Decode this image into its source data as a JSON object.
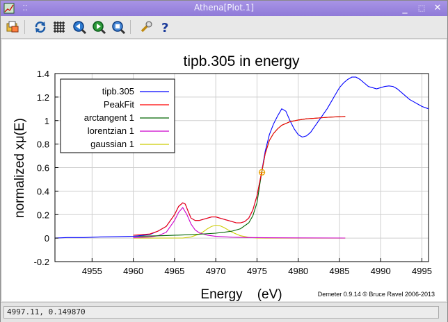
{
  "window": {
    "title": "Athena[Plot.1]"
  },
  "toolbar": {
    "icons": [
      "open-icon",
      "refresh-icon",
      "grid-icon",
      "zoom-back-icon",
      "zoom-forward-icon",
      "zoom-reset-icon",
      "settings-wrench-icon",
      "help-icon"
    ]
  },
  "status": {
    "text": "4997.11, 0.149870"
  },
  "credit": "Demeter 0.9.14 © Bruce Ravel 2006-2013",
  "chart_data": {
    "type": "line",
    "title": "tipb.305 in energy",
    "xlabel": "Energy    (eV)",
    "ylabel": "normalized xμ(E)",
    "xlim": [
      4950.5,
      4995.8
    ],
    "ylim": [
      -0.2,
      1.4
    ],
    "xticks": [
      4955,
      4960,
      4965,
      4970,
      4975,
      4980,
      4985,
      4990,
      4995
    ],
    "yticks": [
      -0.2,
      0,
      0.2,
      0.4,
      0.6,
      0.8,
      1,
      1.2,
      1.4
    ],
    "grid": true,
    "legend_position": "top-left",
    "marker": {
      "x": 4975.6,
      "y": 0.56,
      "color": "#e8a000"
    },
    "series": [
      {
        "name": "tipb.305",
        "color": "#0000ff",
        "x": [
          4950.5,
          4952,
          4954,
          4956,
          4958,
          4960,
          4962,
          4963,
          4964,
          4965,
          4965.5,
          4966,
          4966.3,
          4966.7,
          4967,
          4967.5,
          4968,
          4968.5,
          4969,
          4969.5,
          4970,
          4970.5,
          4971,
          4971.5,
          4972,
          4972.5,
          4973,
          4973.5,
          4974,
          4974.5,
          4975,
          4975.5,
          4976,
          4976.5,
          4977,
          4977.5,
          4978,
          4978.5,
          4979,
          4979.5,
          4980,
          4980.5,
          4981,
          4981.5,
          4982,
          4982.5,
          4983,
          4983.5,
          4984,
          4984.5,
          4985,
          4985.5,
          4986,
          4986.5,
          4987,
          4987.5,
          4988,
          4988.5,
          4989,
          4989.5,
          4990,
          4990.5,
          4991,
          4991.5,
          4992,
          4992.5,
          4993,
          4993.5,
          4994,
          4994.5,
          4995,
          4995.8
        ],
        "y": [
          0.0,
          0.005,
          0.005,
          0.01,
          0.012,
          0.015,
          0.03,
          0.06,
          0.1,
          0.2,
          0.27,
          0.3,
          0.29,
          0.22,
          0.17,
          0.15,
          0.15,
          0.16,
          0.17,
          0.18,
          0.18,
          0.17,
          0.16,
          0.15,
          0.14,
          0.13,
          0.13,
          0.14,
          0.17,
          0.24,
          0.36,
          0.54,
          0.74,
          0.88,
          0.97,
          1.04,
          1.1,
          1.08,
          1.0,
          0.93,
          0.88,
          0.86,
          0.87,
          0.9,
          0.95,
          1.0,
          1.05,
          1.1,
          1.16,
          1.22,
          1.28,
          1.32,
          1.35,
          1.37,
          1.37,
          1.35,
          1.32,
          1.29,
          1.28,
          1.27,
          1.28,
          1.29,
          1.295,
          1.29,
          1.27,
          1.24,
          1.21,
          1.18,
          1.16,
          1.14,
          1.12,
          1.1
        ]
      },
      {
        "name": "PeakFit",
        "color": "#ff0000",
        "x": [
          4960,
          4962,
          4963,
          4964,
          4965,
          4965.5,
          4966,
          4966.3,
          4966.7,
          4967,
          4967.5,
          4968,
          4968.5,
          4969,
          4969.5,
          4970,
          4970.5,
          4971,
          4971.5,
          4972,
          4972.5,
          4973,
          4973.5,
          4974,
          4974.5,
          4975,
          4975.5,
          4976,
          4976.5,
          4977,
          4977.5,
          4978,
          4979,
          4980,
          4981,
          4982,
          4983,
          4984,
          4985,
          4985.7
        ],
        "y": [
          0.025,
          0.035,
          0.06,
          0.1,
          0.2,
          0.27,
          0.3,
          0.29,
          0.22,
          0.17,
          0.15,
          0.15,
          0.16,
          0.17,
          0.18,
          0.18,
          0.17,
          0.16,
          0.15,
          0.14,
          0.13,
          0.13,
          0.14,
          0.17,
          0.24,
          0.36,
          0.54,
          0.72,
          0.83,
          0.89,
          0.93,
          0.96,
          0.99,
          1.005,
          1.015,
          1.02,
          1.025,
          1.03,
          1.033,
          1.035
        ]
      },
      {
        "name": "arctangent 1",
        "color": "#006400",
        "x": [
          4960,
          4962,
          4964,
          4966,
          4968,
          4970,
          4971,
          4972,
          4973,
          4974,
          4974.5,
          4975,
          4975.5,
          4976,
          4976.5,
          4977,
          4977.5,
          4978,
          4979,
          4980,
          4981,
          4982,
          4983,
          4984,
          4985,
          4985.7
        ],
        "y": [
          0.015,
          0.018,
          0.022,
          0.027,
          0.033,
          0.042,
          0.05,
          0.06,
          0.08,
          0.13,
          0.19,
          0.3,
          0.53,
          0.72,
          0.83,
          0.89,
          0.93,
          0.96,
          0.99,
          1.005,
          1.015,
          1.02,
          1.025,
          1.03,
          1.033,
          1.035
        ]
      },
      {
        "name": "lorentzian 1",
        "color": "#cc00cc",
        "x": [
          4960,
          4962,
          4963,
          4964,
          4965,
          4965.5,
          4966,
          4966.5,
          4967,
          4967.5,
          4968,
          4969,
          4970,
          4972,
          4974,
          4976,
          4980,
          4985.7
        ],
        "y": [
          0.003,
          0.01,
          0.02,
          0.05,
          0.15,
          0.22,
          0.26,
          0.2,
          0.12,
          0.07,
          0.045,
          0.025,
          0.015,
          0.008,
          0.005,
          0.003,
          0.002,
          0.001
        ]
      },
      {
        "name": "gaussian 1",
        "color": "#cccc00",
        "x": [
          4960,
          4966,
          4967,
          4968,
          4968.5,
          4969,
          4969.5,
          4970,
          4970.5,
          4971,
          4971.5,
          4972,
          4973,
          4974,
          4975,
          4976,
          4980,
          4985.7
        ],
        "y": [
          0,
          0.001,
          0.01,
          0.035,
          0.055,
          0.08,
          0.1,
          0.11,
          0.105,
          0.09,
          0.07,
          0.05,
          0.02,
          0.006,
          0.001,
          0,
          0,
          0
        ]
      }
    ]
  }
}
